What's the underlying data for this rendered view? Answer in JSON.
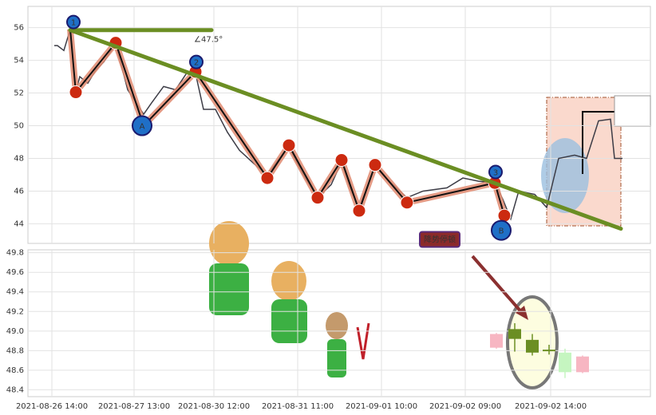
{
  "chart_data": [
    {
      "type": "line",
      "xlim": [
        -30,
        750
      ],
      "ylim": [
        42.8,
        57.3
      ],
      "yticks": [
        44,
        46,
        48,
        50,
        52,
        54,
        56
      ],
      "grid": true,
      "series": [
        {
          "color": "#3c3c46",
          "width": 1.5,
          "x": [
            3,
            7,
            15,
            23,
            30,
            35,
            45,
            55,
            65,
            80,
            95,
            115,
            125,
            140,
            155,
            170,
            180,
            190,
            205,
            220,
            235,
            255,
            270,
            285,
            297,
            315,
            333,
            350,
            363,
            375,
            385,
            405,
            425,
            445,
            465,
            495,
            515,
            535,
            555,
            565,
            575,
            585,
            605,
            620,
            635,
            655,
            670,
            685,
            700,
            705,
            715
          ],
          "values": [
            54.9,
            54.9,
            54.6,
            55.9,
            52.1,
            53,
            52.6,
            53.4,
            53.9,
            55,
            52.2,
            50.7,
            51.4,
            52.4,
            52.2,
            53.3,
            53.2,
            51,
            51,
            49.6,
            48.5,
            47.6,
            47,
            48,
            48.7,
            47,
            45.6,
            46.4,
            47.8,
            46,
            45,
            47.5,
            46.5,
            45.6,
            46,
            46.2,
            46.8,
            46.6,
            46.5,
            45.5,
            44.3,
            46,
            45.8,
            45,
            48,
            48.2,
            48,
            50.3,
            50.4,
            48,
            48
          ]
        },
        {
          "color": "#111111",
          "width": 2,
          "halo": "#e08a70",
          "x": [
            23,
            30,
            80,
            115,
            180,
            270,
            297,
            333,
            363,
            385,
            405,
            445,
            555,
            567
          ],
          "values": [
            55.9,
            52.05,
            55.07,
            50.0,
            53.3,
            46.8,
            48.8,
            45.6,
            47.9,
            44.8,
            47.6,
            45.3,
            46.5,
            44.5
          ]
        }
      ],
      "trend_lines": [
        {
          "color": "#6b8e23",
          "x": [
            23,
            713
          ],
          "values": [
            55.85,
            43.7
          ]
        },
        {
          "color": "#6b8e23",
          "x": [
            23,
            200
          ],
          "values": [
            55.85,
            55.85
          ]
        }
      ],
      "wave_color": "#cc2a10",
      "markers": [
        {
          "label": "1",
          "x": 27,
          "y": 56.34,
          "color": "#1f6fc7",
          "size": 8
        },
        {
          "label": "2",
          "x": 181,
          "y": 53.9,
          "color": "#1f6fc7",
          "size": 8
        },
        {
          "label": "3",
          "x": 556,
          "y": 47.17,
          "color": "#1f6fc7",
          "size": 8
        },
        {
          "label": "A",
          "x": 113,
          "y": 50.0,
          "color": "#1f6fc7",
          "size": 12
        },
        {
          "label": "B",
          "x": 563,
          "y": 43.6,
          "color": "#1f6fc7",
          "size": 12
        }
      ],
      "annotations": [
        {
          "text": "∠47.5°",
          "x": 178,
          "y": 55.27,
          "color": "#6b8e23"
        },
        {
          "text": "降势停顿",
          "x": 486,
          "y": 43.02,
          "color": "#ffffff",
          "boxed": true
        }
      ]
    },
    {
      "type": "candlestick",
      "xlim": [
        -30,
        750
      ],
      "ylim": [
        48.33,
        49.83
      ],
      "yticks": [
        48.4,
        48.6,
        48.8,
        {
          "value": 49,
          "label": "49.0"
        },
        49.2,
        49.4,
        49.6,
        49.8
      ],
      "xticks": [
        {
          "value": 0,
          "label": "2021-08-26 14:00"
        },
        {
          "value": 103,
          "label": "2021-08-27 13:00"
        },
        {
          "value": 203,
          "label": "2021-08-30 12:00"
        },
        {
          "value": 308,
          "label": "2021-08-31 11:00"
        },
        {
          "value": 413,
          "label": "2021-09-01 10:00"
        },
        {
          "value": 518,
          "label": "2021-09-02 09:00"
        },
        {
          "value": 625,
          "label": "2021-09-02 14:00"
        }
      ],
      "grid": true,
      "x": [
        557,
        580,
        602,
        623,
        643,
        665
      ],
      "open": [
        48.83,
        49.02,
        48.91,
        48.81,
        48.78,
        48.58
      ],
      "close": [
        48.97,
        48.92,
        48.78,
        48.8,
        48.58,
        48.74
      ],
      "high": [
        48.98,
        49.08,
        48.97,
        48.86,
        48.82,
        48.75
      ],
      "low": [
        48.82,
        48.79,
        48.75,
        48.76,
        48.52,
        48.57
      ],
      "colors": [
        "#f7b6c2",
        "#6b8e23",
        "#6b8e23",
        "#6b8e23",
        "#c5f5c0",
        "#f7b6c2"
      ]
    }
  ]
}
